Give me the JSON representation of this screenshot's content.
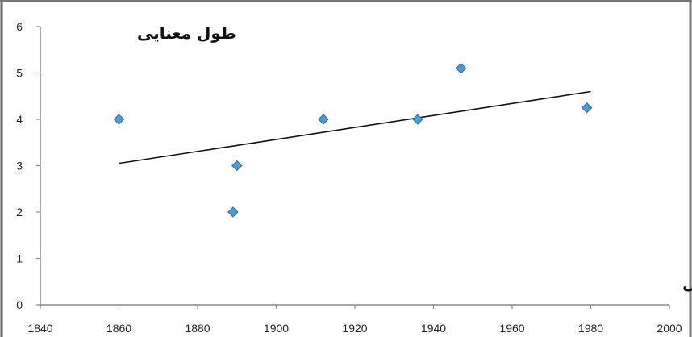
{
  "chart_data": {
    "type": "scatter",
    "title": "",
    "xlabel": "سال",
    "ylabel": "طول معنایی",
    "xlim": [
      1840,
      2000
    ],
    "ylim": [
      0,
      6
    ],
    "x_ticks": [
      "1840",
      "1860",
      "1880",
      "1900",
      "1920",
      "1940",
      "1960",
      "1980",
      "2000"
    ],
    "y_ticks": [
      "0",
      "1",
      "2",
      "3",
      "4",
      "5",
      "6"
    ],
    "grid": false,
    "legend": "none",
    "series": [
      {
        "points": [
          {
            "x": 1860,
            "y": 4.0
          },
          {
            "x": 1889,
            "y": 2.0
          },
          {
            "x": 1890,
            "y": 3.0
          },
          {
            "x": 1912,
            "y": 4.0
          },
          {
            "x": 1936,
            "y": 4.0
          },
          {
            "x": 1947,
            "y": 5.1
          },
          {
            "x": 1979,
            "y": 4.25
          }
        ],
        "marker_color": "#4f9bcc",
        "marker_edge": "#2f6f98",
        "marker": "diamond"
      }
    ],
    "trendline": {
      "type": "linear",
      "from": {
        "x": 1860,
        "y": 3.05
      },
      "to": {
        "x": 1980,
        "y": 4.6
      },
      "color": "#111111"
    }
  }
}
